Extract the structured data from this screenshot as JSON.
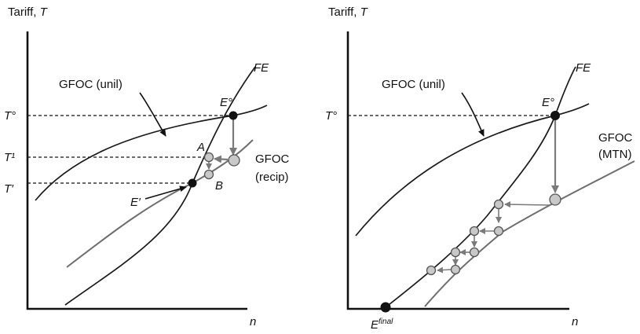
{
  "left_panel": {
    "y_axis_title_prefix": "Tariff, ",
    "y_axis_title_var": "T",
    "x_axis_label": "n",
    "tick_t0": "T°",
    "tick_t1": "T¹",
    "tick_tprime": "T′",
    "label_fe": "FE",
    "label_gfoc_unil": "GFOC (unil)",
    "label_gfoc_recip_1": "GFOC",
    "label_gfoc_recip_2": "(recip)",
    "label_e0": "E°",
    "label_eprime": "E′",
    "label_a": "A",
    "label_b": "B"
  },
  "right_panel": {
    "y_axis_title_prefix": "Tariff, ",
    "y_axis_title_var": "T",
    "x_axis_label": "n",
    "tick_t0": "T°",
    "label_fe": "FE",
    "label_gfoc_unil": "GFOC (unil)",
    "label_gfoc_mtn_1": "GFOC",
    "label_gfoc_mtn_2": "(MTN)",
    "label_e0": "E°",
    "label_efinal_base": "E",
    "label_efinal_sup": "final"
  },
  "colors": {
    "black_curve": "#1a1a1a",
    "grey_curve": "#6e6e6e",
    "grey_dot_fill": "#c8c8c8"
  }
}
